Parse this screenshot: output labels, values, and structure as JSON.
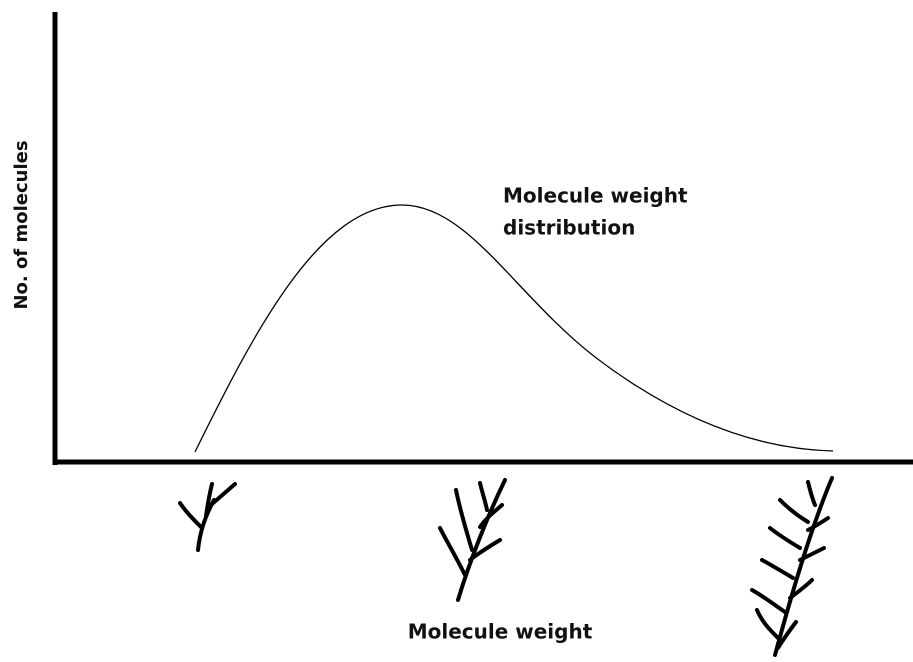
{
  "diagram": {
    "y_axis_label": "No. of molecules",
    "x_axis_label": "Molecule weight",
    "curve_label": [
      "Molecule weight",
      "distribution"
    ]
  }
}
